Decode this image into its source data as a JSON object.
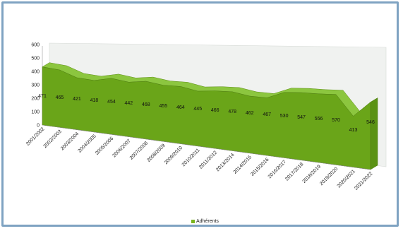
{
  "chart_data": {
    "type": "area",
    "style": "3d",
    "title": "",
    "xlabel": "",
    "ylabel": "",
    "ylim": [
      0,
      600
    ],
    "yticks": [
      0,
      100,
      200,
      300,
      400,
      500,
      600
    ],
    "grid": false,
    "legend_position": "bottom",
    "colors": {
      "area_front": "#6aa519",
      "area_top": "#8cc63f",
      "back_wall": "#f0f2f0"
    },
    "categories": [
      "2001/2002",
      "2002/2003",
      "2003/2004",
      "2004/2005",
      "2005/2006",
      "2006/2007",
      "2007/2008",
      "2008/2009",
      "2009/2010",
      "2010/2011",
      "2011/2012",
      "2013/2014",
      "2014/2015",
      "2015/2016",
      "2016/2017",
      "2017/2018",
      "2018/2019",
      "2019/2020",
      "2020/2021",
      "2021/2022"
    ],
    "series": [
      {
        "name": "Adhérents",
        "values": [
          471,
          465,
          421,
          418,
          454,
          442,
          468,
          455,
          464,
          445,
          466,
          478,
          462,
          467,
          530,
          547,
          556,
          570,
          413,
          546
        ]
      }
    ]
  }
}
